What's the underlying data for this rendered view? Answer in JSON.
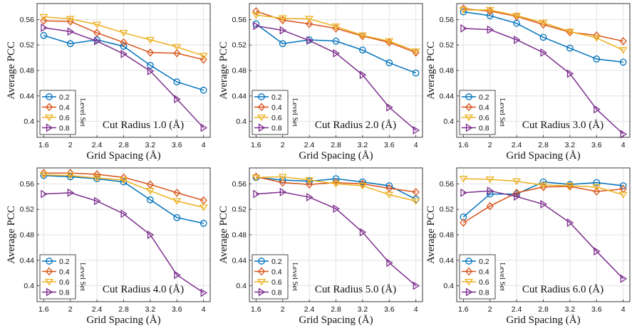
{
  "figure": {
    "colors": {
      "0.2": "#0072BD",
      "0.4": "#D95319",
      "0.6": "#EDB120",
      "0.8": "#7E2F8E"
    },
    "markers": {
      "0.2": "circle",
      "0.4": "diamond",
      "0.6": "triangle-down",
      "0.8": "triangle-right"
    }
  },
  "chart_data": [
    {
      "type": "line",
      "title": "Cut Radius 1.0 (Å)",
      "xlabel": "Grid Spacing (Å)",
      "ylabel": "Average PCC",
      "legend_title": "Level Set",
      "legend_position": "bottom-left",
      "grid": true,
      "x": [
        1.6,
        2,
        2.4,
        2.8,
        3.2,
        3.6,
        4
      ],
      "xticks": [
        "1.6",
        "2",
        "2.4",
        "2.8",
        "3.2",
        "3.6",
        "4"
      ],
      "yticks": [
        "0.4",
        "0.44",
        "0.48",
        "0.52",
        "0.56"
      ],
      "ylim": [
        0.375,
        0.585
      ],
      "series": [
        {
          "name": "0.2",
          "values": [
            0.535,
            0.522,
            0.528,
            0.518,
            0.488,
            0.462,
            0.449
          ]
        },
        {
          "name": "0.4",
          "values": [
            0.558,
            0.557,
            0.539,
            0.524,
            0.508,
            0.507,
            0.497
          ]
        },
        {
          "name": "0.6",
          "values": [
            0.564,
            0.561,
            0.552,
            0.539,
            0.528,
            0.517,
            0.503
          ]
        },
        {
          "name": "0.8",
          "values": [
            0.547,
            0.541,
            0.526,
            0.506,
            0.479,
            0.435,
            0.39
          ]
        }
      ]
    },
    {
      "type": "line",
      "title": "Cut Radius 2.0 (Å)",
      "xlabel": "Grid Spacing (Å)",
      "ylabel": "Average PCC",
      "legend_title": "Level Set",
      "legend_position": "bottom-left",
      "grid": true,
      "x": [
        1.6,
        2,
        2.4,
        2.8,
        3.2,
        3.6,
        4
      ],
      "xticks": [
        "1.6",
        "2",
        "2.4",
        "2.8",
        "3.2",
        "3.6",
        "4"
      ],
      "yticks": [
        "0.4",
        "0.44",
        "0.48",
        "0.52",
        "0.56"
      ],
      "ylim": [
        0.375,
        0.585
      ],
      "series": [
        {
          "name": "0.2",
          "values": [
            0.553,
            0.522,
            0.528,
            0.526,
            0.512,
            0.492,
            0.476
          ]
        },
        {
          "name": "0.4",
          "values": [
            0.573,
            0.559,
            0.553,
            0.546,
            0.534,
            0.524,
            0.508
          ]
        },
        {
          "name": "0.6",
          "values": [
            0.567,
            0.562,
            0.561,
            0.549,
            0.535,
            0.526,
            0.51
          ]
        },
        {
          "name": "0.8",
          "values": [
            0.55,
            0.543,
            0.527,
            0.507,
            0.473,
            0.422,
            0.386
          ]
        }
      ]
    },
    {
      "type": "line",
      "title": "Cut Radius 3.0 (Å)",
      "xlabel": "Grid Spacing (Å)",
      "ylabel": "Average PCC",
      "legend_title": "Level Set",
      "legend_position": "bottom-left",
      "grid": true,
      "x": [
        1.6,
        2,
        2.4,
        2.8,
        3.2,
        3.6,
        4
      ],
      "xticks": [
        "1.6",
        "2",
        "2.4",
        "2.8",
        "3.2",
        "3.6",
        "4"
      ],
      "yticks": [
        "0.4",
        "0.44",
        "0.48",
        "0.52",
        "0.56"
      ],
      "ylim": [
        0.375,
        0.585
      ],
      "series": [
        {
          "name": "0.2",
          "values": [
            0.572,
            0.566,
            0.554,
            0.532,
            0.515,
            0.498,
            0.493
          ]
        },
        {
          "name": "0.4",
          "values": [
            0.577,
            0.573,
            0.565,
            0.552,
            0.54,
            0.535,
            0.526
          ]
        },
        {
          "name": "0.6",
          "values": [
            0.575,
            0.575,
            0.566,
            0.555,
            0.541,
            0.531,
            0.512
          ]
        },
        {
          "name": "0.8",
          "values": [
            0.546,
            0.544,
            0.528,
            0.508,
            0.475,
            0.419,
            0.38
          ]
        }
      ]
    },
    {
      "type": "line",
      "title": "Cut Radius 4.0 (Å)",
      "xlabel": "Grid Spacing (Å)",
      "ylabel": "Average PCC",
      "legend_title": "Level Set",
      "legend_position": "bottom-left",
      "grid": true,
      "x": [
        1.6,
        2,
        2.4,
        2.8,
        3.2,
        3.6,
        4
      ],
      "xticks": [
        "1.6",
        "2",
        "2.4",
        "2.8",
        "3.2",
        "3.6",
        "4"
      ],
      "yticks": [
        "0.4",
        "0.44",
        "0.48",
        "0.52",
        "0.56"
      ],
      "ylim": [
        0.375,
        0.585
      ],
      "series": [
        {
          "name": "0.2",
          "values": [
            0.573,
            0.571,
            0.568,
            0.563,
            0.535,
            0.507,
            0.498
          ]
        },
        {
          "name": "0.4",
          "values": [
            0.577,
            0.577,
            0.575,
            0.57,
            0.559,
            0.546,
            0.534
          ]
        },
        {
          "name": "0.6",
          "values": [
            0.574,
            0.573,
            0.569,
            0.566,
            0.549,
            0.533,
            0.523
          ]
        },
        {
          "name": "0.8",
          "values": [
            0.544,
            0.546,
            0.533,
            0.513,
            0.48,
            0.417,
            0.389
          ]
        }
      ]
    },
    {
      "type": "line",
      "title": "Cut Radius 5.0 (Å)",
      "xlabel": "Grid Spacing (Å)",
      "ylabel": "Average PCC",
      "legend_title": "Level Set",
      "legend_position": "bottom-left",
      "grid": true,
      "x": [
        1.6,
        2,
        2.4,
        2.8,
        3.2,
        3.6,
        4
      ],
      "xticks": [
        "1.6",
        "2",
        "2.4",
        "2.8",
        "3.2",
        "3.6",
        "4"
      ],
      "yticks": [
        "0.4",
        "0.44",
        "0.48",
        "0.52",
        "0.56"
      ],
      "ylim": [
        0.375,
        0.585
      ],
      "series": [
        {
          "name": "0.2",
          "values": [
            0.57,
            0.566,
            0.564,
            0.568,
            0.563,
            0.557,
            0.536
          ]
        },
        {
          "name": "0.4",
          "values": [
            0.571,
            0.562,
            0.559,
            0.562,
            0.56,
            0.553,
            0.547
          ]
        },
        {
          "name": "0.6",
          "values": [
            0.57,
            0.571,
            0.566,
            0.56,
            0.557,
            0.543,
            0.533
          ]
        },
        {
          "name": "0.8",
          "values": [
            0.544,
            0.547,
            0.539,
            0.521,
            0.484,
            0.436,
            0.4
          ]
        }
      ]
    },
    {
      "type": "line",
      "title": "Cut Radius 6.0 (Å)",
      "xlabel": "Grid Spacing (Å)",
      "ylabel": "Average PCC",
      "legend_title": "Level Set",
      "legend_position": "bottom-left",
      "grid": true,
      "x": [
        1.6,
        2,
        2.4,
        2.8,
        3.2,
        3.6,
        4
      ],
      "xticks": [
        "1.6",
        "2",
        "2.4",
        "2.8",
        "3.2",
        "3.6",
        "4"
      ],
      "yticks": [
        "0.4",
        "0.44",
        "0.48",
        "0.52",
        "0.56"
      ],
      "ylim": [
        0.375,
        0.585
      ],
      "series": [
        {
          "name": "0.2",
          "values": [
            0.508,
            0.544,
            0.544,
            0.563,
            0.559,
            0.562,
            0.557
          ]
        },
        {
          "name": "0.4",
          "values": [
            0.499,
            0.525,
            0.546,
            0.555,
            0.556,
            0.548,
            0.552
          ]
        },
        {
          "name": "0.6",
          "values": [
            0.568,
            0.567,
            0.564,
            0.558,
            0.557,
            0.555,
            0.543
          ]
        },
        {
          "name": "0.8",
          "values": [
            0.546,
            0.549,
            0.54,
            0.528,
            0.499,
            0.454,
            0.411
          ]
        }
      ]
    }
  ]
}
